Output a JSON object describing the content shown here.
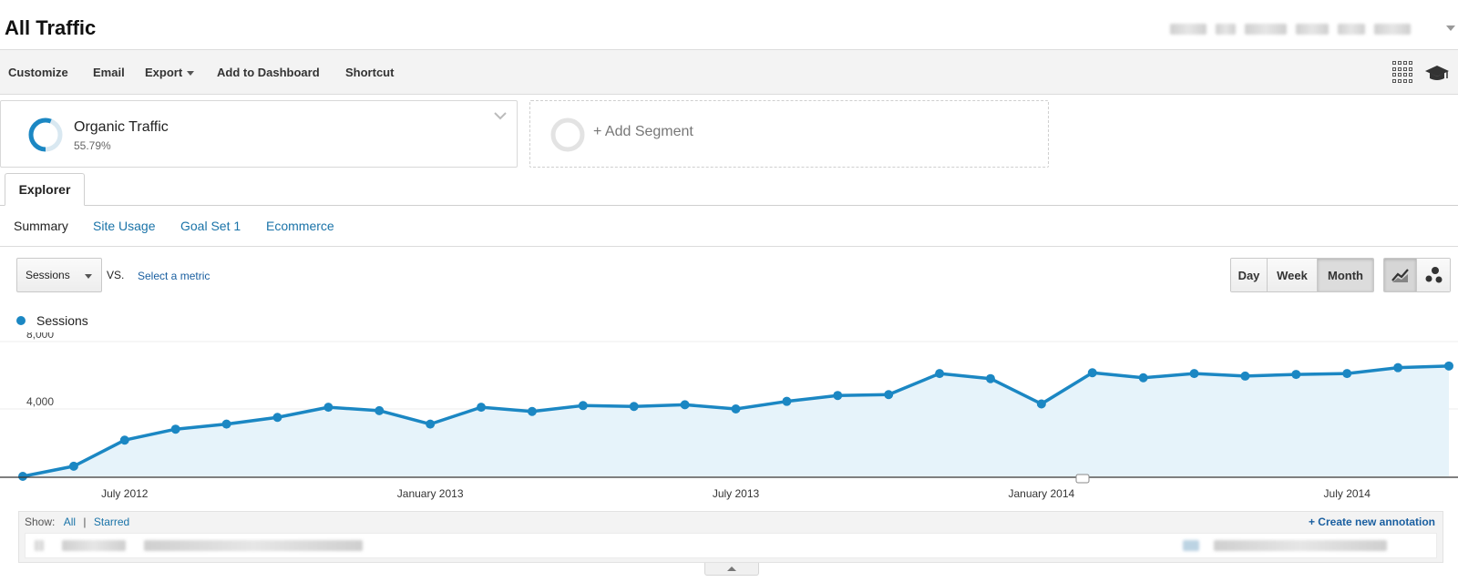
{
  "header": {
    "title": "All Traffic"
  },
  "toolbar": {
    "customize": "Customize",
    "email": "Email",
    "export": "Export",
    "add_to_dashboard": "Add to Dashboard",
    "shortcut": "Shortcut",
    "icons": [
      "apps-grid-icon",
      "graduation-cap-icon"
    ]
  },
  "segments": {
    "organic": {
      "name": "Organic Traffic",
      "percent": "55.79%",
      "fill_fraction": 0.5579,
      "color": "#1b87c3"
    },
    "add": {
      "label": "+ Add Segment"
    }
  },
  "tabs": {
    "explorer": "Explorer"
  },
  "subtabs": [
    "Summary",
    "Site Usage",
    "Goal Set 1",
    "Ecommerce"
  ],
  "controls": {
    "metric": "Sessions",
    "vs": "VS.",
    "select_metric": "Select a metric",
    "periods": [
      "Day",
      "Week",
      "Month"
    ],
    "active_period": "Month",
    "chart_types": [
      "line-chart-icon",
      "motion-chart-icon"
    ]
  },
  "legend": {
    "label": "Sessions",
    "color": "#1b87c3"
  },
  "chart_data": {
    "type": "area",
    "series": [
      {
        "name": "Sessions",
        "values": [
          0,
          600,
          2150,
          2800,
          3100,
          3500,
          4100,
          3900,
          3100,
          4100,
          3850,
          4200,
          4150,
          4250,
          4000,
          4450,
          4800,
          4850,
          6100,
          5800,
          4300,
          6150,
          5850,
          6100,
          5950,
          6050,
          6100,
          6450,
          6550
        ]
      }
    ],
    "x_tick_labels": [
      "July 2012",
      "January 2013",
      "July 2013",
      "January 2014",
      "July 2014"
    ],
    "y_tick_labels": [
      "8,000",
      "4,000"
    ],
    "ylim": [
      0,
      8000
    ],
    "grid": true,
    "line_color": "#1b87c3",
    "fill_color": "#e6f3fa"
  },
  "annotations": {
    "show_label": "Show:",
    "all": "All",
    "separator": "|",
    "starred": "Starred",
    "create": "+ Create new annotation"
  }
}
